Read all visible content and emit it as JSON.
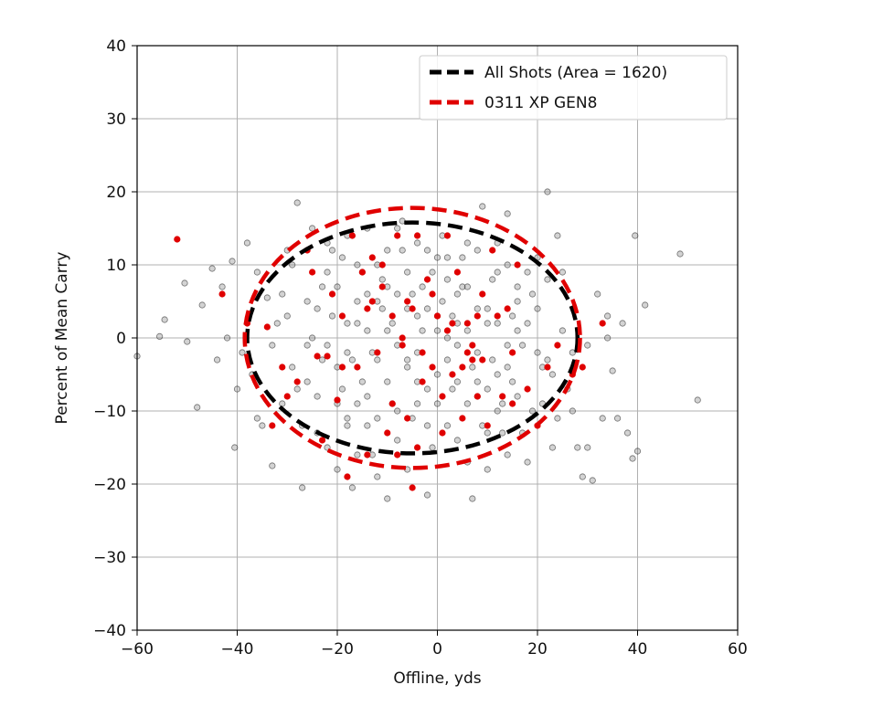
{
  "chart_data": {
    "type": "scatter",
    "xlabel": "Offline, yds",
    "ylabel": "Percent of Mean Carry",
    "xlim": [
      -60,
      60
    ],
    "ylim": [
      -40,
      40
    ],
    "xticks": [
      -60,
      -40,
      -20,
      0,
      20,
      40,
      60
    ],
    "yticks": [
      -40,
      -30,
      -20,
      -10,
      0,
      10,
      20,
      30,
      40
    ],
    "xtick_labels": [
      "−60",
      "−40",
      "−20",
      "0",
      "20",
      "40",
      "60"
    ],
    "ytick_labels": [
      "−40",
      "−30",
      "−20",
      "−10",
      "0",
      "10",
      "20",
      "30",
      "40"
    ],
    "grid": true,
    "legend_position": "top-right",
    "series": [
      {
        "name": "All Shots (Area = 1620)",
        "kind": "ellipse",
        "color": "#000000",
        "center": [
          -5,
          0
        ],
        "radii": [
          33,
          15.8
        ]
      },
      {
        "name": "0311 XP GEN8",
        "kind": "ellipse",
        "color": "#e00000",
        "center": [
          -5,
          0
        ],
        "radii": [
          33.5,
          17.8
        ]
      }
    ],
    "points_all": {
      "color": "#808080",
      "values": [
        [
          -60,
          -2.5
        ],
        [
          -55.5,
          0.2
        ],
        [
          -54.5,
          2.5
        ],
        [
          -50.5,
          7.5
        ],
        [
          -50,
          -0.5
        ],
        [
          -48,
          -9.5
        ],
        [
          -47,
          4.5
        ],
        [
          -45,
          9.5
        ],
        [
          -44,
          -3
        ],
        [
          -43,
          7
        ],
        [
          -42,
          0
        ],
        [
          -41,
          10.5
        ],
        [
          -40.5,
          -15
        ],
        [
          -40,
          -7
        ],
        [
          -39,
          -2
        ],
        [
          -38,
          13
        ],
        [
          -37,
          -5
        ],
        [
          -36,
          9
        ],
        [
          -35,
          -12
        ],
        [
          -34,
          5.5
        ],
        [
          -33,
          -17.5
        ],
        [
          -32,
          2
        ],
        [
          -31,
          -9
        ],
        [
          -30,
          12
        ],
        [
          -29,
          -4
        ],
        [
          -28,
          18.5
        ],
        [
          -27,
          -20.5
        ],
        [
          -26,
          -1
        ],
        [
          -25,
          15
        ],
        [
          -24,
          -8
        ],
        [
          -23,
          7
        ],
        [
          -22,
          -15
        ],
        [
          -21,
          3
        ],
        [
          -20,
          -18
        ],
        [
          -19,
          11
        ],
        [
          -18,
          -11
        ],
        [
          -17,
          -20.5
        ],
        [
          -16,
          5
        ],
        [
          -15,
          -6
        ],
        [
          -14,
          15
        ],
        [
          -13,
          -2
        ],
        [
          -12,
          -19
        ],
        [
          -11,
          8
        ],
        [
          -10,
          -22
        ],
        [
          -9,
          2
        ],
        [
          -8,
          -14
        ],
        [
          -7,
          12
        ],
        [
          -6,
          -4
        ],
        [
          -5,
          6
        ],
        [
          -4,
          -9
        ],
        [
          -3,
          1
        ],
        [
          -2,
          -21.5
        ],
        [
          -1,
          9
        ],
        [
          0,
          -5
        ],
        [
          1,
          14
        ],
        [
          2,
          -12
        ],
        [
          3,
          3
        ],
        [
          4,
          -1
        ],
        [
          5,
          7
        ],
        [
          6,
          -17
        ],
        [
          7,
          -22
        ],
        [
          8,
          -8
        ],
        [
          9,
          18
        ],
        [
          10,
          2
        ],
        [
          11,
          -3
        ],
        [
          12,
          13
        ],
        [
          13,
          -13
        ],
        [
          14,
          17
        ],
        [
          15,
          -6
        ],
        [
          16,
          5
        ],
        [
          17,
          -1
        ],
        [
          18,
          9
        ],
        [
          19,
          -10
        ],
        [
          20,
          4
        ],
        [
          21,
          -4
        ],
        [
          22,
          20
        ],
        [
          23,
          -15
        ],
        [
          24,
          14
        ],
        [
          25,
          1
        ],
        [
          26,
          -7
        ],
        [
          27,
          -2
        ],
        [
          28,
          -15
        ],
        [
          29,
          -19
        ],
        [
          30,
          -15
        ],
        [
          31,
          -19.5
        ],
        [
          32,
          6
        ],
        [
          34,
          0
        ],
        [
          36,
          -11
        ],
        [
          38,
          -13
        ],
        [
          40,
          -15.5
        ],
        [
          39,
          -16.5
        ],
        [
          39.5,
          14
        ],
        [
          41.5,
          4.5
        ],
        [
          48.5,
          11.5
        ],
        [
          52,
          -8.5
        ],
        [
          35,
          -4.5
        ],
        [
          34,
          3
        ],
        [
          37,
          2
        ],
        [
          33,
          -11
        ],
        [
          30,
          -1
        ],
        [
          -36,
          -11
        ],
        [
          -33,
          -1
        ],
        [
          -31,
          6
        ],
        [
          -29,
          10
        ],
        [
          -27,
          -12
        ],
        [
          -25,
          0
        ],
        [
          -23,
          -3
        ],
        [
          -21,
          12
        ],
        [
          -19,
          -7
        ],
        [
          -17,
          -3
        ],
        [
          -15,
          9
        ],
        [
          -13,
          -16
        ],
        [
          -11,
          4
        ],
        [
          -9,
          -9
        ],
        [
          -7,
          16
        ],
        [
          -5,
          -11
        ],
        [
          -3,
          7
        ],
        [
          -1,
          -15
        ],
        [
          1,
          5
        ],
        [
          3,
          -7
        ],
        [
          5,
          11
        ],
        [
          7,
          -4
        ],
        [
          9,
          -12
        ],
        [
          11,
          8
        ],
        [
          13,
          -9
        ],
        [
          15,
          3
        ],
        [
          17,
          -13
        ],
        [
          19,
          6
        ],
        [
          21,
          -9
        ],
        [
          23,
          -5
        ],
        [
          25,
          9
        ],
        [
          27,
          -10
        ],
        [
          -30,
          3
        ],
        [
          -28,
          -7
        ],
        [
          -26,
          5
        ],
        [
          -24,
          -13
        ],
        [
          -22,
          9
        ],
        [
          -20,
          -4
        ],
        [
          -18,
          14
        ],
        [
          -16,
          -16
        ],
        [
          -14,
          1
        ],
        [
          -12,
          10
        ],
        [
          -10,
          -6
        ],
        [
          -8,
          15
        ],
        [
          -6,
          -18
        ],
        [
          -4,
          3
        ],
        [
          -2,
          12
        ],
        [
          0,
          -9
        ],
        [
          2,
          8
        ],
        [
          4,
          -14
        ],
        [
          6,
          1
        ],
        [
          8,
          12
        ],
        [
          10,
          -18
        ],
        [
          12,
          -5
        ],
        [
          14,
          10
        ],
        [
          16,
          -8
        ],
        [
          18,
          -17
        ],
        [
          20,
          11
        ],
        [
          22,
          -3
        ],
        [
          24,
          -11
        ],
        [
          -18,
          2
        ],
        [
          -16,
          -9
        ],
        [
          -14,
          6
        ],
        [
          -12,
          -3
        ],
        [
          -10,
          12
        ],
        [
          -8,
          -1
        ],
        [
          -6,
          9
        ],
        [
          -4,
          -6
        ],
        [
          -2,
          4
        ],
        [
          0,
          1
        ],
        [
          2,
          -3
        ],
        [
          4,
          6
        ],
        [
          6,
          -9
        ],
        [
          8,
          4
        ],
        [
          10,
          -7
        ],
        [
          12,
          2
        ],
        [
          14,
          -4
        ],
        [
          16,
          1
        ],
        [
          -22,
          -1
        ],
        [
          -20,
          7
        ],
        [
          -18,
          -12
        ],
        [
          -16,
          10
        ],
        [
          -14,
          -8
        ],
        [
          -12,
          5
        ],
        [
          -10,
          1
        ],
        [
          -8,
          -10
        ],
        [
          -6,
          4
        ],
        [
          -4,
          13
        ],
        [
          -2,
          -7
        ],
        [
          0,
          3
        ],
        [
          2,
          11
        ],
        [
          4,
          -6
        ],
        [
          6,
          7
        ],
        [
          8,
          -2
        ],
        [
          10,
          -13
        ],
        [
          12,
          9
        ],
        [
          14,
          -16
        ],
        [
          -24,
          4
        ],
        [
          -20,
          -9
        ],
        [
          -16,
          2
        ],
        [
          -12,
          -11
        ],
        [
          -8,
          6
        ],
        [
          -4,
          -2
        ],
        [
          0,
          11
        ],
        [
          4,
          2
        ],
        [
          8,
          -6
        ],
        [
          12,
          -10
        ],
        [
          16,
          7
        ],
        [
          20,
          -2
        ],
        [
          -26,
          -6
        ],
        [
          -22,
          13
        ],
        [
          -18,
          -2
        ],
        [
          -14,
          -12
        ],
        [
          -10,
          7
        ],
        [
          -6,
          -3
        ],
        [
          -2,
          -12
        ],
        [
          2,
          0
        ],
        [
          6,
          13
        ],
        [
          10,
          4
        ],
        [
          14,
          -1
        ],
        [
          18,
          2
        ],
        [
          22,
          8
        ]
      ]
    },
    "points_red": {
      "color": "#e00000",
      "values": [
        [
          -52,
          13.5
        ],
        [
          -43,
          6
        ],
        [
          -38,
          2
        ],
        [
          -34,
          1.5
        ],
        [
          -31,
          -4
        ],
        [
          -28,
          -6
        ],
        [
          -26,
          12
        ],
        [
          -25,
          9
        ],
        [
          -24,
          -2.5
        ],
        [
          -23,
          -14
        ],
        [
          -21,
          6
        ],
        [
          -20,
          -8.5
        ],
        [
          -19,
          3
        ],
        [
          -18,
          -19
        ],
        [
          -17,
          14
        ],
        [
          -16,
          -4
        ],
        [
          -15,
          9
        ],
        [
          -14,
          -16
        ],
        [
          -13,
          5
        ],
        [
          -12,
          -2
        ],
        [
          -11,
          7
        ],
        [
          -10,
          -13
        ],
        [
          -9,
          3
        ],
        [
          -8,
          14
        ],
        [
          -7,
          -1
        ],
        [
          -6,
          5
        ],
        [
          -5,
          -20.5
        ],
        [
          -4,
          14
        ],
        [
          -3,
          -2
        ],
        [
          -2,
          8
        ],
        [
          -1,
          -4
        ],
        [
          0,
          3
        ],
        [
          1,
          -13
        ],
        [
          2,
          1
        ],
        [
          3,
          -5
        ],
        [
          4,
          9
        ],
        [
          5,
          -11
        ],
        [
          6,
          2
        ],
        [
          7,
          -3
        ],
        [
          8,
          -8
        ],
        [
          9,
          6
        ],
        [
          10,
          -12
        ],
        [
          11,
          12
        ],
        [
          12,
          3
        ],
        [
          13,
          -8
        ],
        [
          14,
          4
        ],
        [
          15,
          -2
        ],
        [
          16,
          10
        ],
        [
          18,
          -7
        ],
        [
          20,
          -12
        ],
        [
          22,
          -4
        ],
        [
          24,
          -1
        ],
        [
          27,
          -5
        ],
        [
          29,
          -4
        ],
        [
          33,
          2
        ],
        [
          -14,
          4
        ],
        [
          -11,
          10
        ],
        [
          -9,
          -9
        ],
        [
          -7,
          0
        ],
        [
          -5,
          4
        ],
        [
          -3,
          -6
        ],
        [
          -1,
          6
        ],
        [
          1,
          -8
        ],
        [
          3,
          2
        ],
        [
          5,
          -4
        ],
        [
          7,
          -1
        ],
        [
          9,
          -3
        ],
        [
          -22,
          -2.5
        ],
        [
          -30,
          -8
        ],
        [
          -33,
          -12
        ],
        [
          -19,
          -4
        ],
        [
          -6,
          -11
        ],
        [
          8,
          3
        ],
        [
          -8,
          -16
        ],
        [
          15,
          -9
        ],
        [
          -4,
          -15
        ],
        [
          2,
          14
        ],
        [
          -13,
          11
        ],
        [
          6,
          -2
        ]
      ]
    }
  }
}
